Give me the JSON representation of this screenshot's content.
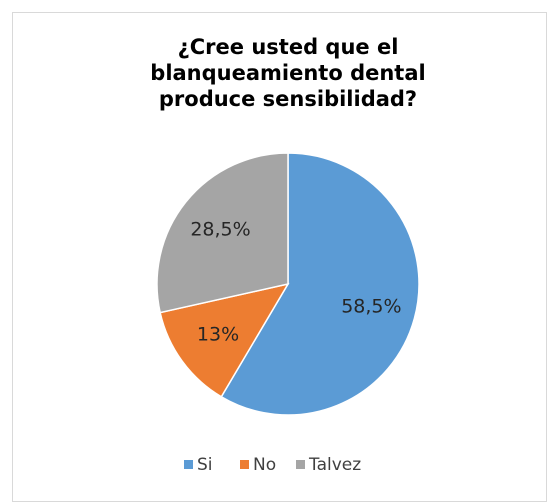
{
  "chart_data": {
    "type": "pie",
    "title": "¿Cree usted que el blanqueamiento dental produce sensibilidad?",
    "categories": [
      "Si",
      "No",
      "Talvez"
    ],
    "values": [
      58.5,
      13,
      28.5
    ],
    "value_labels": [
      "58,5%",
      "13%",
      "28,5%"
    ],
    "colors": [
      "#5b9bd5",
      "#ed7d31",
      "#a5a5a5"
    ],
    "legend": "bottom"
  }
}
